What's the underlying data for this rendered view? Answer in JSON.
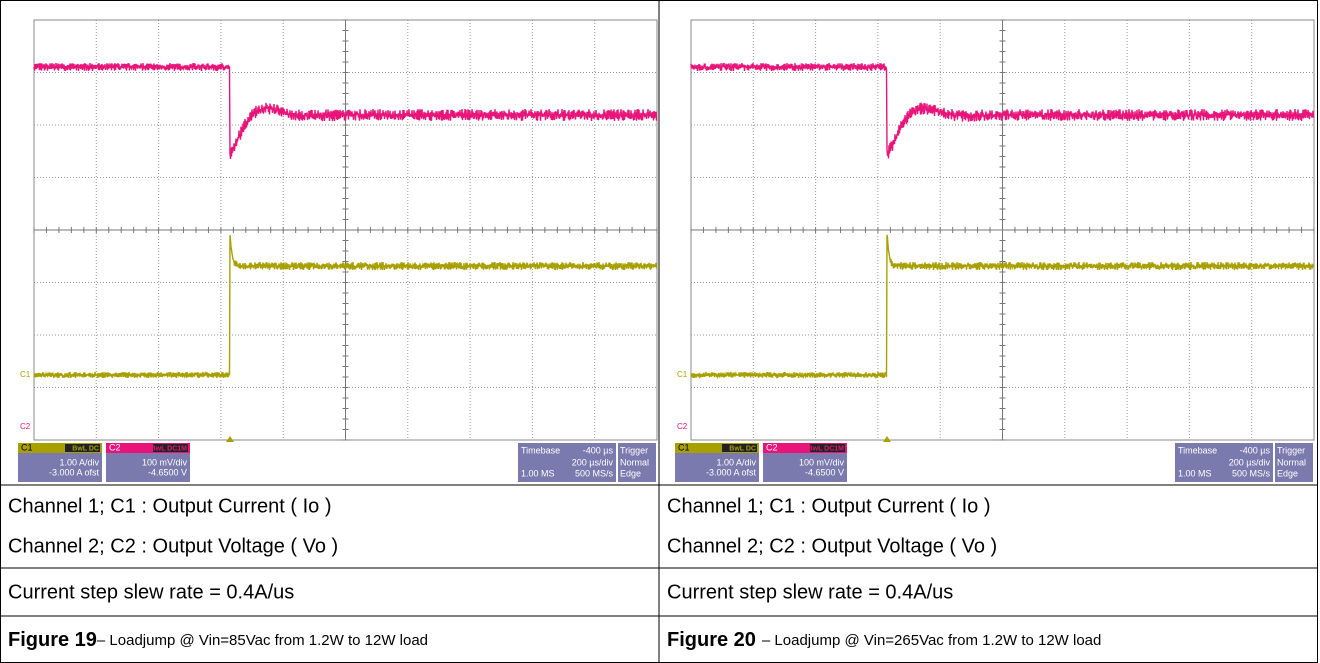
{
  "figures": [
    {
      "scope": {
        "c1": {
          "label": "C1",
          "coupling": "BwL DC",
          "scale": "1.00 A/div",
          "offset": "-3.000 A ofst"
        },
        "c2": {
          "label": "C2",
          "coupling": "BwL DC1M",
          "scale": "100 mV/div",
          "offset": "-4.6500 V"
        },
        "timebase": {
          "label": "Timebase",
          "delay": "-400 µs",
          "scale": "200 µs/div",
          "samples": "1.00 MS",
          "rate": "500 MS/s"
        },
        "trigger": {
          "label": "Trigger",
          "mode": "Normal",
          "type": "Edge"
        },
        "markers": {
          "c1": "C1",
          "c2": "C2"
        }
      },
      "channel_1": "Channel 1; C1 : Output Current ( Io )",
      "channel_2": "Channel 2; C2 : Output Voltage ( Vo )",
      "slew_rate": "Current step slew rate = 0.4A/us",
      "caption": {
        "number": "Figure 19",
        "text": "– Loadjump @ Vin=85Vac from 1.2W to 12W load"
      }
    },
    {
      "scope": {
        "c1": {
          "label": "C1",
          "coupling": "BwL DC",
          "scale": "1.00 A/div",
          "offset": "-3.000 A ofst"
        },
        "c2": {
          "label": "C2",
          "coupling": "BwL DC1M",
          "scale": "100 mV/div",
          "offset": "-4.6500 V"
        },
        "timebase": {
          "label": "Timebase",
          "delay": "-400 µs",
          "scale": "200 µs/div",
          "samples": "1.00 MS",
          "rate": "500 MS/s"
        },
        "trigger": {
          "label": "Trigger",
          "mode": "Normal",
          "type": "Edge"
        },
        "markers": {
          "c1": "C1",
          "c2": "C2"
        }
      },
      "channel_1": "Channel 1; C1 : Output Current ( Io )",
      "channel_2": "Channel 2; C2 : Output Voltage ( Vo )",
      "slew_rate": "Current step slew rate = 0.4A/us",
      "caption": {
        "number": "Figure 20",
        "text": "– Loadjump @ Vin=265Vac from 1.2W to 12W load"
      }
    }
  ]
}
